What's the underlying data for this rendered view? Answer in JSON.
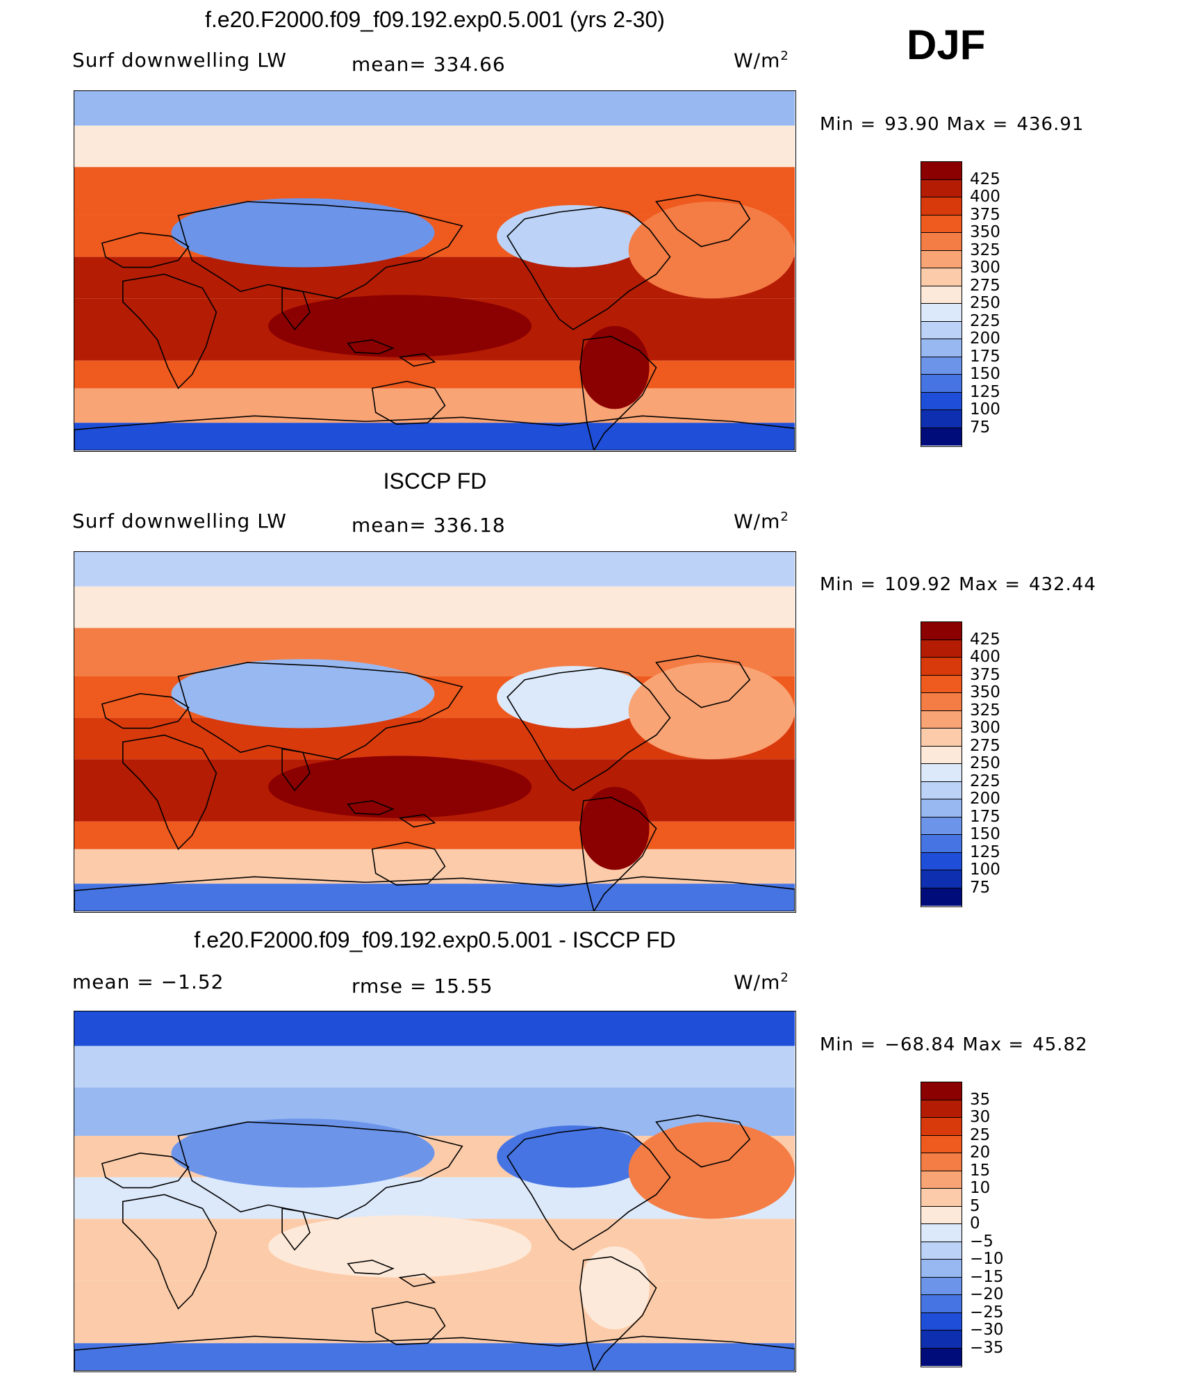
{
  "season": "DJF",
  "chart_data": [
    {
      "type": "heatmap",
      "title": "f.e20.F2000.f09_f09.192.exp0.5.001 (yrs 2-30)",
      "variable": "Surf downwelling LW",
      "stat_left": "",
      "stat_mid": "mean= 334.66",
      "units": "W/m",
      "units_exp": "2",
      "min_label": "Min =",
      "min_value": "93.90",
      "max_label": "Max =",
      "max_value": "436.91",
      "levels": [
        "425",
        "400",
        "375",
        "350",
        "325",
        "300",
        "275",
        "250",
        "225",
        "200",
        "175",
        "150",
        "125",
        "100",
        "75"
      ],
      "colors": [
        "#8b0000",
        "#b51c04",
        "#d93a0c",
        "#ef5a1e",
        "#f47d45",
        "#f9a475",
        "#fcccaa",
        "#fde9d9",
        "#dce9fb",
        "#bcd3f7",
        "#97b8f1",
        "#6c95ea",
        "#4674e3",
        "#1f4ed8",
        "#0d2fb0",
        "#000c7a"
      ],
      "region_values": {
        "arctic": 180,
        "north_america": 210,
        "siberia": 170,
        "north_atlantic": 340,
        "tropics": 410,
        "warm_pool": 430,
        "subtropics": 370,
        "southern_ocean": 300,
        "antarctica": 120
      }
    },
    {
      "type": "heatmap",
      "title": "ISCCP FD",
      "variable": "Surf downwelling LW",
      "stat_left": "",
      "stat_mid": "mean= 336.18",
      "units": "W/m",
      "units_exp": "2",
      "min_label": "Min =",
      "min_value": "109.92",
      "max_label": "Max =",
      "max_value": "432.44",
      "levels": [
        "425",
        "400",
        "375",
        "350",
        "325",
        "300",
        "275",
        "250",
        "225",
        "200",
        "175",
        "150",
        "125",
        "100",
        "75"
      ],
      "colors": [
        "#8b0000",
        "#b51c04",
        "#d93a0c",
        "#ef5a1e",
        "#f47d45",
        "#f9a475",
        "#fcccaa",
        "#fde9d9",
        "#dce9fb",
        "#bcd3f7",
        "#97b8f1",
        "#6c95ea",
        "#4674e3",
        "#1f4ed8",
        "#0d2fb0",
        "#000c7a"
      ],
      "region_values": {
        "arctic": 200,
        "north_america": 230,
        "siberia": 190,
        "north_atlantic": 320,
        "tropics": 400,
        "warm_pool": 425,
        "subtropics": 365,
        "southern_ocean": 290,
        "antarctica": 140
      }
    },
    {
      "type": "heatmap",
      "title": "f.e20.F2000.f09_f09.192.exp0.5.001 - ISCCP FD",
      "variable": "",
      "stat_left": "mean =    −1.52",
      "stat_mid": "rmse =    15.55",
      "units": "W/m",
      "units_exp": "2",
      "min_label": "Min =",
      "min_value": "−68.84",
      "max_label": "Max =",
      "max_value": "45.82",
      "levels": [
        "35",
        "30",
        "25",
        "20",
        "15",
        "10",
        "5",
        "0",
        "−5",
        "−10",
        "−15",
        "−20",
        "−25",
        "−30",
        "−35"
      ],
      "colors": [
        "#8b0000",
        "#b51c04",
        "#d93a0c",
        "#ef5a1e",
        "#f47d45",
        "#f9a475",
        "#fcccaa",
        "#fde9d9",
        "#dce9fb",
        "#bcd3f7",
        "#97b8f1",
        "#6c95ea",
        "#4674e3",
        "#1f4ed8",
        "#0d2fb0",
        "#000c7a"
      ],
      "region_values": {
        "arctic": -30,
        "north_america": -25,
        "siberia": -20,
        "north_atlantic": 15,
        "tropics": 5,
        "warm_pool": 2,
        "subtropics": 8,
        "southern_ocean": 5,
        "antarctica": -25
      }
    }
  ]
}
